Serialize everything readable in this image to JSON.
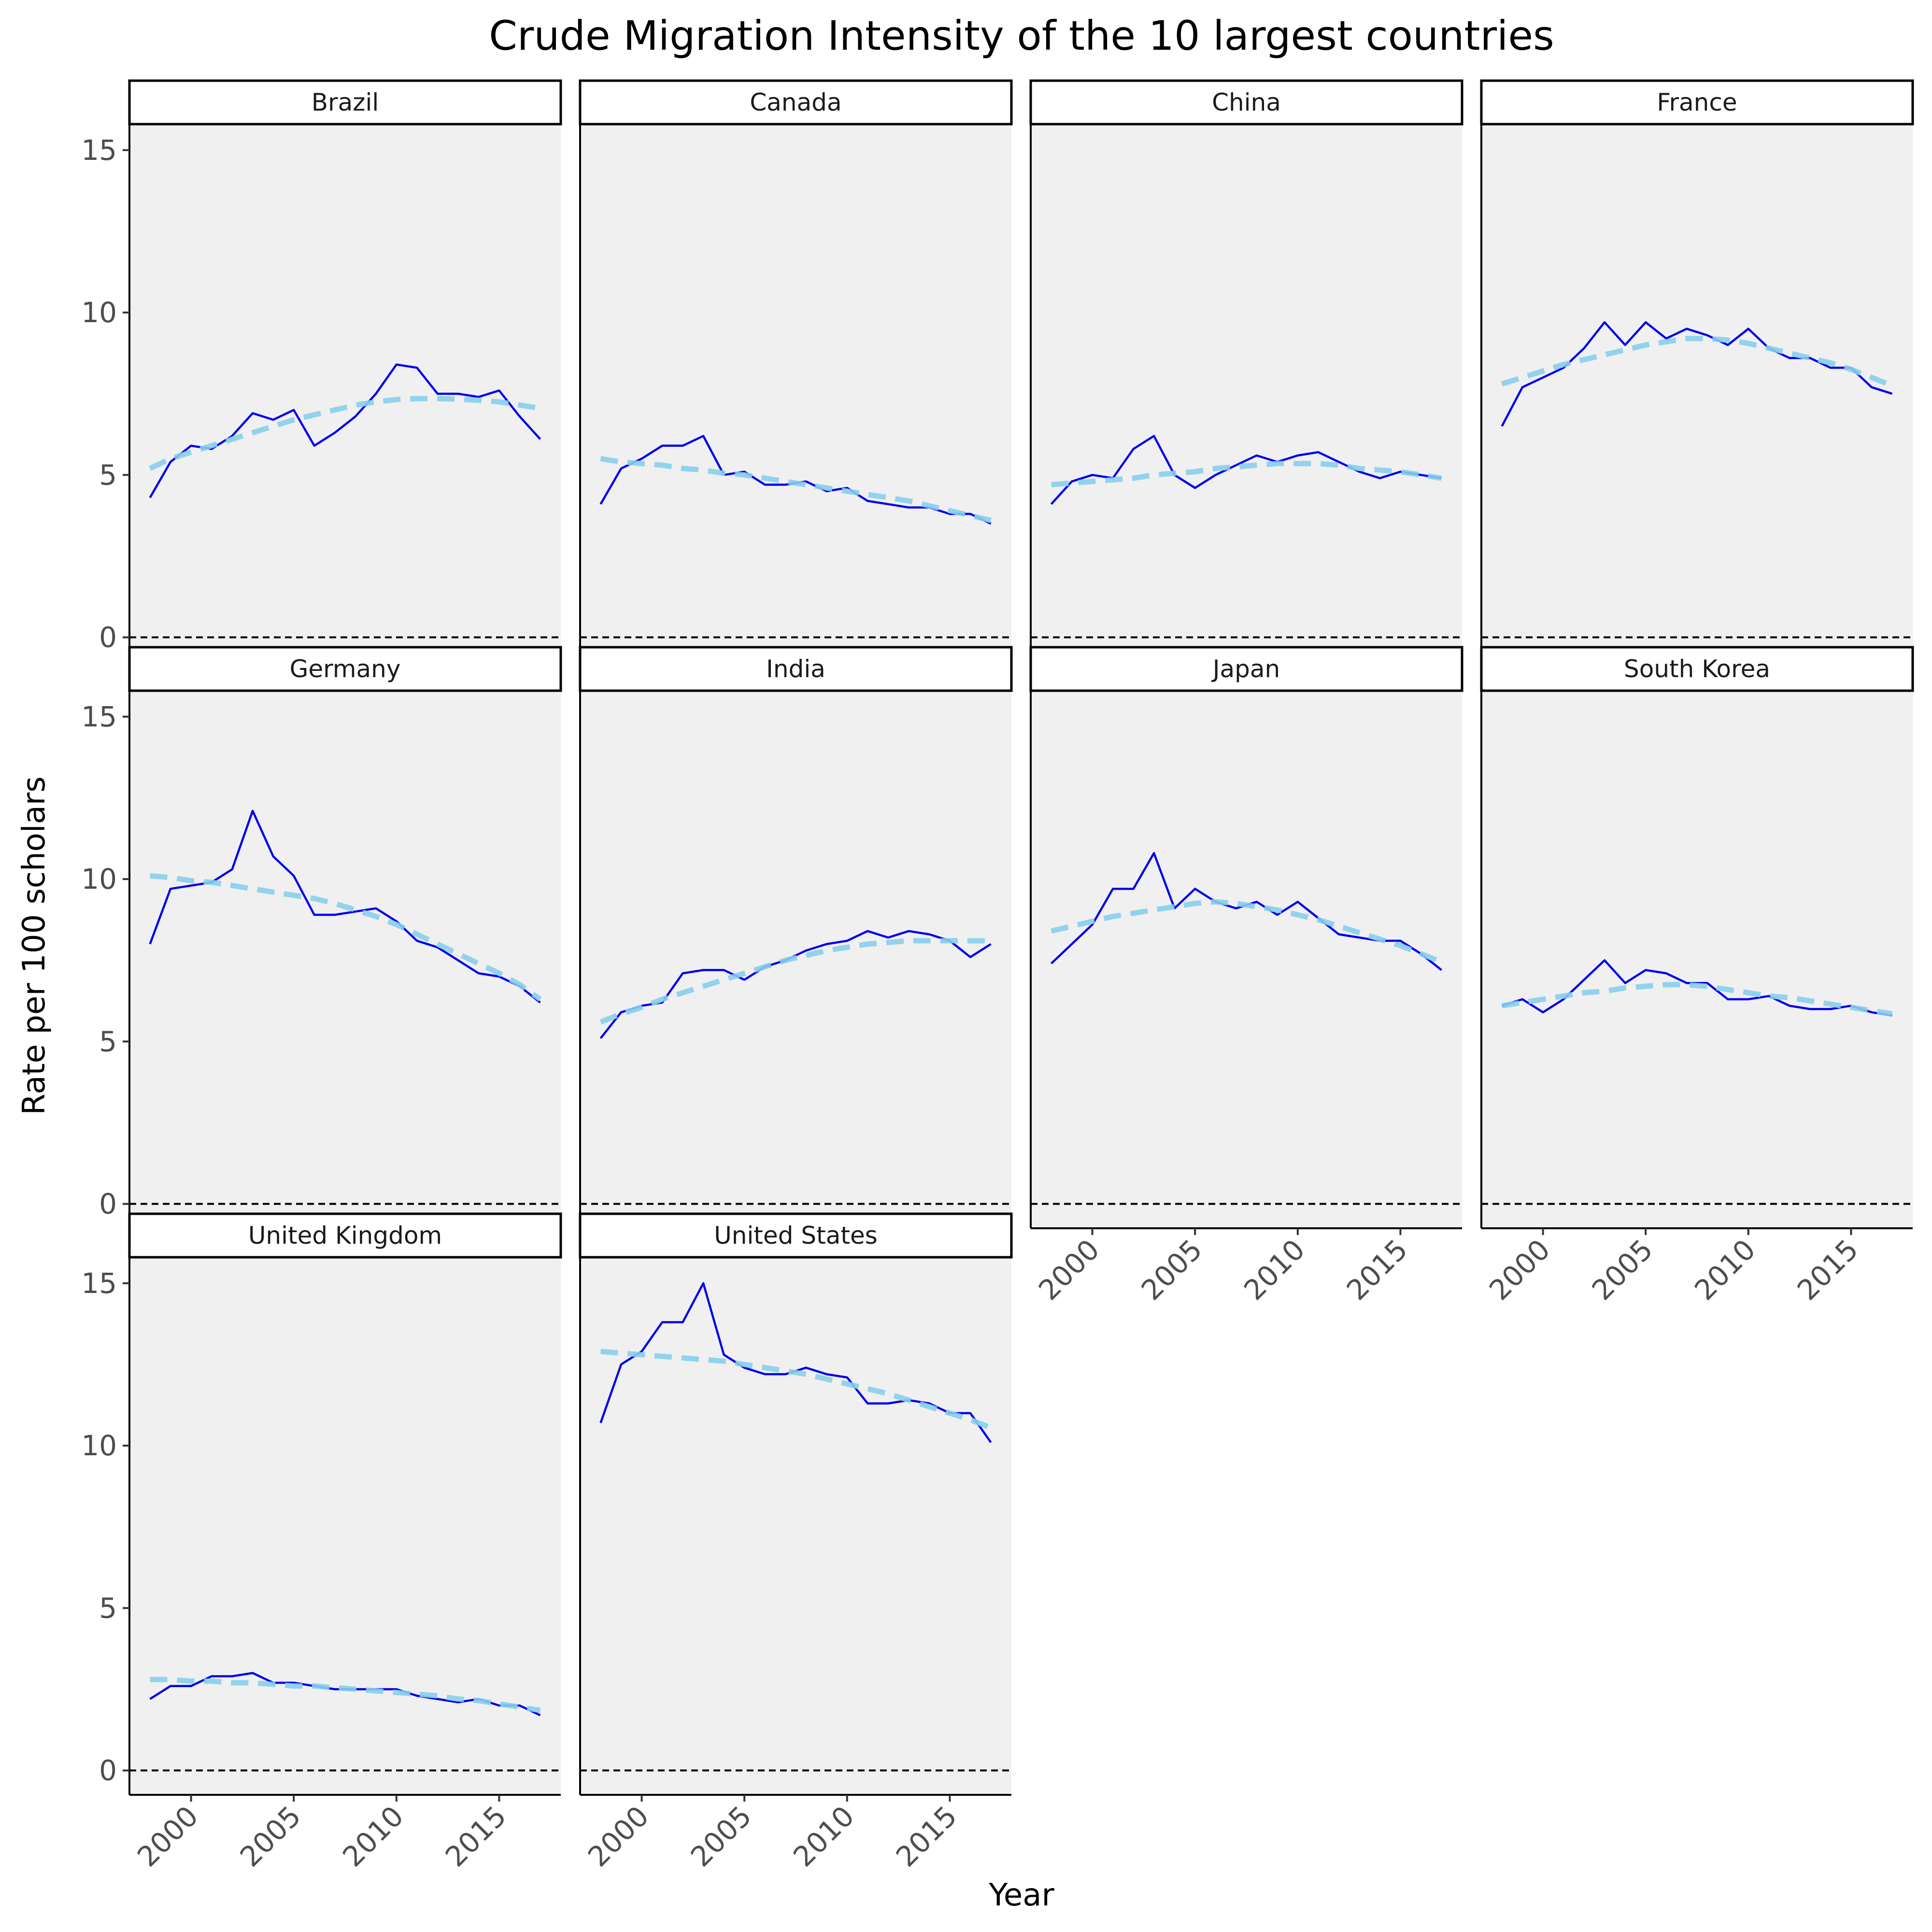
{
  "chart_data": {
    "type": "line",
    "title": "Crude Migration Intensity of the 10 largest countries",
    "xlabel": "Year",
    "ylabel": "Rate per 100 scholars",
    "xlim": [
      1997,
      2018
    ],
    "ylim": [
      -0.75,
      15.8
    ],
    "xticks": [
      2000,
      2005,
      2010,
      2015
    ],
    "yticks": [
      0,
      5,
      10,
      15
    ],
    "reference_line": 0,
    "colors": {
      "observed": "#0000ee",
      "trend": "#87ceeb",
      "panel_background": "#f0f0f0",
      "reference": "#000000"
    },
    "years": [
      1998,
      1999,
      2000,
      2001,
      2002,
      2003,
      2004,
      2005,
      2006,
      2007,
      2008,
      2009,
      2010,
      2011,
      2012,
      2013,
      2014,
      2015,
      2016,
      2017
    ],
    "panels": [
      {
        "name": "Brazil",
        "values": [
          4.3,
          5.4,
          5.9,
          5.8,
          6.2,
          6.9,
          6.7,
          7.0,
          5.9,
          6.3,
          6.8,
          7.5,
          8.4,
          8.3,
          7.5,
          7.5,
          7.4,
          7.6,
          6.8,
          6.1
        ],
        "trend": [
          5.2,
          5.5,
          5.7,
          5.9,
          6.1,
          6.3,
          6.5,
          6.7,
          6.85,
          7.0,
          7.15,
          7.25,
          7.32,
          7.35,
          7.35,
          7.33,
          7.3,
          7.25,
          7.15,
          7.05
        ]
      },
      {
        "name": "Canada",
        "values": [
          4.1,
          5.2,
          5.5,
          5.9,
          5.9,
          6.2,
          5.0,
          5.1,
          4.7,
          4.7,
          4.8,
          4.5,
          4.6,
          4.2,
          4.1,
          4.0,
          4.0,
          3.8,
          3.8,
          3.5
        ],
        "trend": [
          5.5,
          5.4,
          5.35,
          5.3,
          5.2,
          5.15,
          5.05,
          5.0,
          4.9,
          4.8,
          4.7,
          4.6,
          4.5,
          4.4,
          4.3,
          4.2,
          4.05,
          3.9,
          3.75,
          3.6
        ]
      },
      {
        "name": "China",
        "values": [
          4.1,
          4.8,
          5.0,
          4.9,
          5.8,
          6.2,
          5.0,
          4.6,
          5.0,
          5.3,
          5.6,
          5.4,
          5.6,
          5.7,
          5.4,
          5.1,
          4.9,
          5.1,
          5.0,
          4.9
        ],
        "trend": [
          4.7,
          4.75,
          4.8,
          4.85,
          4.9,
          5.0,
          5.05,
          5.1,
          5.2,
          5.25,
          5.3,
          5.35,
          5.35,
          5.35,
          5.3,
          5.2,
          5.15,
          5.1,
          5.0,
          4.9
        ]
      },
      {
        "name": "France",
        "values": [
          6.5,
          7.7,
          8.0,
          8.3,
          8.9,
          9.7,
          9.0,
          9.7,
          9.2,
          9.5,
          9.3,
          9.0,
          9.5,
          8.9,
          8.6,
          8.6,
          8.3,
          8.3,
          7.7,
          7.5
        ],
        "trend": [
          7.8,
          8.0,
          8.2,
          8.4,
          8.55,
          8.7,
          8.85,
          9.0,
          9.1,
          9.2,
          9.2,
          9.15,
          9.05,
          8.9,
          8.75,
          8.6,
          8.45,
          8.25,
          8.0,
          7.75
        ]
      },
      {
        "name": "Germany",
        "values": [
          8.0,
          9.7,
          9.8,
          9.9,
          10.3,
          12.1,
          10.7,
          10.1,
          8.9,
          8.9,
          9.0,
          9.1,
          8.7,
          8.1,
          7.9,
          7.5,
          7.1,
          7.0,
          6.7,
          6.2
        ],
        "trend": [
          10.1,
          10.05,
          9.95,
          9.9,
          9.8,
          9.7,
          9.6,
          9.5,
          9.4,
          9.25,
          9.05,
          8.85,
          8.6,
          8.3,
          8.0,
          7.7,
          7.4,
          7.1,
          6.75,
          6.3
        ]
      },
      {
        "name": "India",
        "values": [
          5.1,
          5.9,
          6.1,
          6.2,
          7.1,
          7.2,
          7.2,
          6.9,
          7.3,
          7.5,
          7.8,
          8.0,
          8.1,
          8.4,
          8.2,
          8.4,
          8.3,
          8.1,
          7.6,
          8.0
        ],
        "trend": [
          5.6,
          5.85,
          6.05,
          6.3,
          6.5,
          6.7,
          6.9,
          7.1,
          7.3,
          7.5,
          7.65,
          7.8,
          7.9,
          8.0,
          8.05,
          8.1,
          8.1,
          8.1,
          8.1,
          8.1
        ]
      },
      {
        "name": "Japan",
        "values": [
          7.4,
          8.0,
          8.6,
          9.7,
          9.7,
          10.8,
          9.1,
          9.7,
          9.3,
          9.1,
          9.3,
          8.9,
          9.3,
          8.8,
          8.3,
          8.2,
          8.1,
          8.1,
          7.7,
          7.2
        ],
        "trend": [
          8.4,
          8.55,
          8.7,
          8.85,
          8.95,
          9.05,
          9.15,
          9.25,
          9.3,
          9.25,
          9.15,
          9.05,
          8.9,
          8.75,
          8.55,
          8.35,
          8.15,
          7.95,
          7.7,
          7.45
        ]
      },
      {
        "name": "South Korea",
        "values": [
          6.1,
          6.3,
          5.9,
          6.3,
          6.9,
          7.5,
          6.8,
          7.2,
          7.1,
          6.8,
          6.8,
          6.3,
          6.3,
          6.4,
          6.1,
          6.0,
          6.0,
          6.1,
          5.9,
          5.8
        ],
        "trend": [
          6.1,
          6.2,
          6.3,
          6.4,
          6.5,
          6.55,
          6.65,
          6.7,
          6.75,
          6.75,
          6.7,
          6.6,
          6.5,
          6.4,
          6.35,
          6.25,
          6.15,
          6.05,
          5.95,
          5.85
        ]
      },
      {
        "name": "United Kingdom",
        "values": [
          2.2,
          2.6,
          2.6,
          2.9,
          2.9,
          3.0,
          2.7,
          2.7,
          2.6,
          2.5,
          2.5,
          2.5,
          2.5,
          2.3,
          2.2,
          2.1,
          2.2,
          2.0,
          2.0,
          1.7
        ],
        "trend": [
          2.8,
          2.8,
          2.75,
          2.75,
          2.7,
          2.7,
          2.65,
          2.6,
          2.6,
          2.55,
          2.5,
          2.45,
          2.4,
          2.35,
          2.3,
          2.2,
          2.15,
          2.05,
          1.95,
          1.85
        ]
      },
      {
        "name": "United States",
        "values": [
          10.7,
          12.5,
          12.9,
          13.8,
          13.8,
          15.0,
          12.8,
          12.4,
          12.2,
          12.2,
          12.4,
          12.2,
          12.1,
          11.3,
          11.3,
          11.4,
          11.3,
          11.0,
          11.0,
          10.1
        ],
        "trend": [
          12.9,
          12.85,
          12.8,
          12.75,
          12.7,
          12.65,
          12.6,
          12.5,
          12.4,
          12.3,
          12.2,
          12.05,
          11.9,
          11.75,
          11.6,
          11.4,
          11.2,
          11.0,
          10.8,
          10.55
        ]
      }
    ]
  }
}
